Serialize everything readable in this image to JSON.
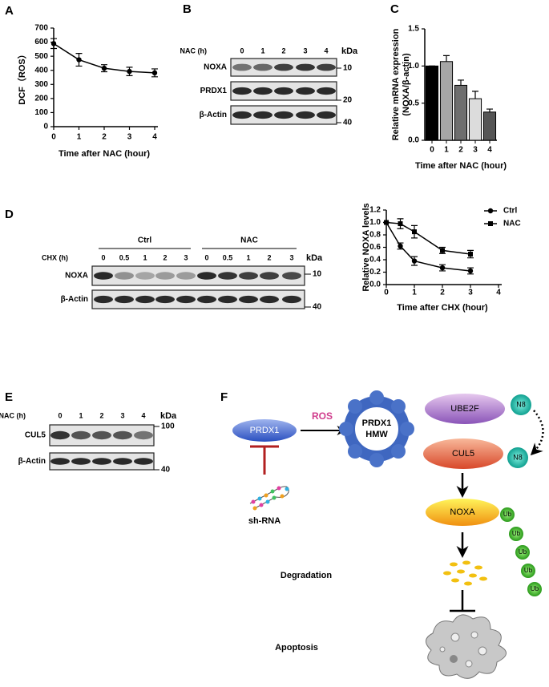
{
  "panels": [
    "A",
    "B",
    "C",
    "D",
    "E",
    "F"
  ],
  "chart_data": [
    {
      "type": "line",
      "xlabel": "Time after NAC (hour)",
      "ylabel": "DCF（ROS）",
      "x": [
        0,
        1,
        2,
        3,
        4
      ],
      "xlim": [
        0,
        4
      ],
      "xticks": [
        0,
        1,
        2,
        3,
        4
      ],
      "ylim": [
        0,
        700
      ],
      "yticks": [
        0,
        100,
        200,
        300,
        400,
        500,
        600,
        700
      ],
      "series": [
        {
          "color": "#000000",
          "marker": "circle",
          "values": [
            590,
            475,
            415,
            392,
            382
          ],
          "errors": [
            35,
            45,
            25,
            30,
            28
          ]
        }
      ]
    },
    {
      "type": "bar",
      "xlabel": "Time after NAC (hour)",
      "ylabel": [
        "Relative mRNA expression",
        "(NOXA/β-actin)"
      ],
      "categories": [
        "0",
        "1",
        "2",
        "3",
        "4"
      ],
      "values": [
        1.0,
        1.06,
        0.74,
        0.56,
        0.38
      ],
      "errors": [
        0,
        0.08,
        0.07,
        0.1,
        0.04
      ],
      "colors": [
        "#000000",
        "#a6a6a6",
        "#6e6e6e",
        "#dcdcdc",
        "#555555"
      ],
      "ylim": [
        0,
        1.5
      ],
      "yticks": [
        {
          "value": 0,
          "label": "0.0"
        },
        {
          "value": 0.5,
          "label": "0.5"
        },
        {
          "value": 1.0,
          "label": "1.0"
        },
        {
          "value": 1.5,
          "label": "1.5"
        }
      ]
    },
    {
      "type": "line",
      "xlabel": "Time after CHX (hour)",
      "ylabel": "Relative NOXA levels",
      "legend": "upper right",
      "x": [
        0,
        0.5,
        1,
        2,
        3
      ],
      "xlim": [
        0,
        4
      ],
      "xticks": [
        0,
        1,
        2,
        3,
        4
      ],
      "ylim": [
        0,
        1.2
      ],
      "yticks": [
        {
          "value": 0,
          "label": "0.0"
        },
        {
          "value": 0.2,
          "label": "0.2"
        },
        {
          "value": 0.4,
          "label": "0.4"
        },
        {
          "value": 0.6,
          "label": "0.6"
        },
        {
          "value": 0.8,
          "label": "0.8"
        },
        {
          "value": 1.0,
          "label": "1.0"
        },
        {
          "value": 1.2,
          "label": "1.2"
        }
      ],
      "series": [
        {
          "name": "Ctrl",
          "color": "#000000",
          "marker": "circle",
          "values": [
            1.0,
            0.62,
            0.38,
            0.27,
            0.22
          ],
          "errors": [
            0,
            0.05,
            0.07,
            0.05,
            0.05
          ]
        },
        {
          "name": "NAC",
          "color": "#000000",
          "marker": "square",
          "values": [
            1.0,
            0.98,
            0.85,
            0.55,
            0.49
          ],
          "errors": [
            0,
            0.08,
            0.1,
            0.05,
            0.06
          ]
        }
      ]
    }
  ],
  "blots": [
    {
      "header": "NAC (h)",
      "lanes": [
        "0",
        "1",
        "2",
        "3",
        "4"
      ],
      "unit": "kDa",
      "rows": [
        "NOXA",
        "PRDX1",
        "β-Actin"
      ],
      "markers": [
        "10",
        "20",
        "40"
      ]
    },
    {
      "header": "CHX (h)",
      "groups": [
        "Ctrl",
        "NAC"
      ],
      "lanes": [
        "0",
        "0.5",
        "1",
        "2",
        "3",
        "0",
        "0.5",
        "1",
        "2",
        "3"
      ],
      "unit": "kDa",
      "rows": [
        "NOXA",
        "β-Actin"
      ],
      "markers": [
        "10",
        "40"
      ]
    },
    {
      "header": "NAC (h)",
      "lanes": [
        "0",
        "1",
        "2",
        "3",
        "4"
      ],
      "unit": "kDa",
      "rows": [
        "CUL5",
        "β-Actin"
      ],
      "markers": [
        "100",
        "40"
      ]
    }
  ],
  "diagram": {
    "prdx1": "PRDX1",
    "ros": "ROS",
    "hmw": [
      "PRDX1",
      "HMW"
    ],
    "ube2f": "UBE2F",
    "n8": [
      "N8",
      "N8"
    ],
    "cul5": "CUL5",
    "noxa": "NOXA",
    "ub": [
      "Ub",
      "Ub",
      "Ub",
      "Ub",
      "Ub"
    ],
    "shrna": "sh-RNA",
    "degradation": "Degradation",
    "apoptosis": "Apoptosis"
  }
}
